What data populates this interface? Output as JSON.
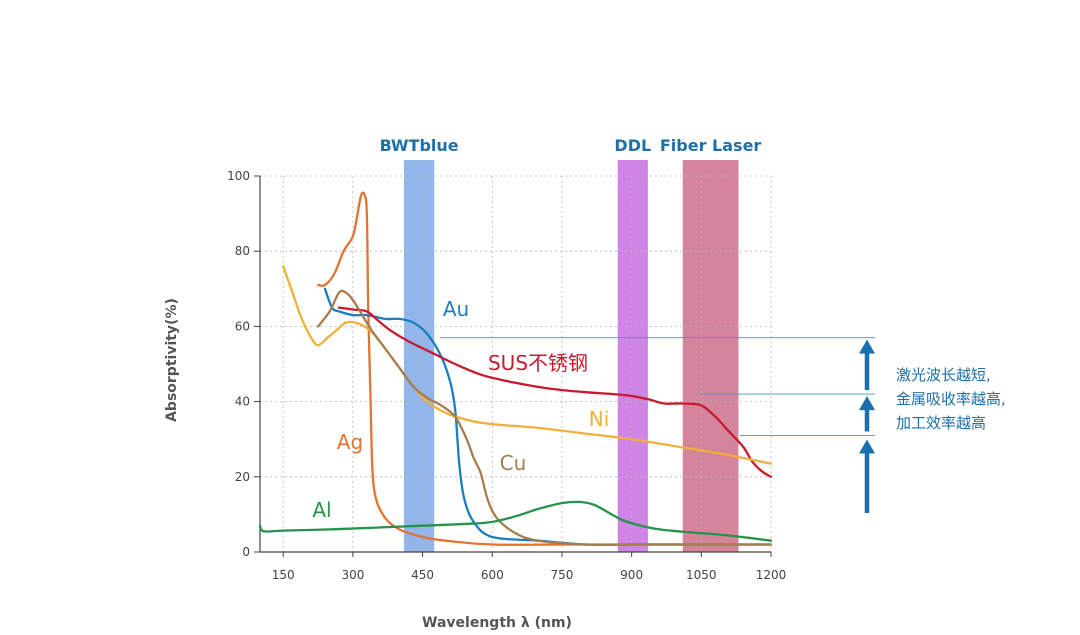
{
  "chart_data": {
    "type": "line",
    "xlabel": "Wavelength λ (nm)",
    "ylabel": "Absorptivity(%)",
    "xlim": [
      100,
      1200
    ],
    "ylim": [
      0,
      100
    ],
    "x_ticks": [
      150,
      300,
      450,
      600,
      750,
      900,
      1050,
      1200
    ],
    "y_ticks": [
      0,
      20,
      40,
      60,
      80,
      100
    ],
    "grid": true,
    "bands": [
      {
        "label": "BWTblue",
        "from": 410,
        "to": 475,
        "color": "#7fa8e6"
      },
      {
        "label": "DDL",
        "from": 870,
        "to": 935,
        "color": "#c86ee0"
      },
      {
        "label": "Fiber Laser",
        "from": 1010,
        "to": 1130,
        "color": "#cc6f8a"
      }
    ],
    "series": [
      {
        "name": "Ag",
        "color": "#e07533",
        "points": [
          [
            225,
            71
          ],
          [
            240,
            71
          ],
          [
            260,
            74
          ],
          [
            280,
            80
          ],
          [
            300,
            84
          ],
          [
            310,
            90
          ],
          [
            318,
            95
          ],
          [
            325,
            95
          ],
          [
            330,
            90
          ],
          [
            333,
            65
          ],
          [
            338,
            40
          ],
          [
            342,
            22
          ],
          [
            350,
            14
          ],
          [
            370,
            9
          ],
          [
            400,
            6
          ],
          [
            450,
            4
          ],
          [
            500,
            3
          ],
          [
            600,
            2
          ],
          [
            750,
            2
          ],
          [
            900,
            2
          ],
          [
            1200,
            2
          ]
        ]
      },
      {
        "name": "Au",
        "color": "#1a7fbf",
        "points": [
          [
            240,
            70
          ],
          [
            255,
            65
          ],
          [
            270,
            64
          ],
          [
            300,
            63
          ],
          [
            330,
            63
          ],
          [
            370,
            62
          ],
          [
            400,
            62
          ],
          [
            430,
            61
          ],
          [
            460,
            58
          ],
          [
            490,
            52
          ],
          [
            510,
            45
          ],
          [
            520,
            38
          ],
          [
            525,
            30
          ],
          [
            530,
            22
          ],
          [
            540,
            14
          ],
          [
            560,
            8
          ],
          [
            600,
            4
          ],
          [
            700,
            3
          ],
          [
            800,
            2
          ],
          [
            900,
            2
          ],
          [
            1000,
            2
          ],
          [
            1200,
            2
          ]
        ]
      },
      {
        "name": "SUS不锈钢",
        "color": "#c8192f",
        "points": [
          [
            270,
            65
          ],
          [
            300,
            64.5
          ],
          [
            330,
            64
          ],
          [
            350,
            62
          ],
          [
            380,
            59
          ],
          [
            420,
            56
          ],
          [
            470,
            53
          ],
          [
            520,
            50
          ],
          [
            580,
            47
          ],
          [
            650,
            45
          ],
          [
            720,
            43.5
          ],
          [
            800,
            42.5
          ],
          [
            860,
            42
          ],
          [
            900,
            41.5
          ],
          [
            940,
            40.5
          ],
          [
            970,
            39.5
          ],
          [
            1010,
            39.5
          ],
          [
            1050,
            39
          ],
          [
            1080,
            36
          ],
          [
            1110,
            32
          ],
          [
            1140,
            28
          ],
          [
            1160,
            24
          ],
          [
            1180,
            21.5
          ],
          [
            1200,
            20
          ]
        ]
      },
      {
        "name": "Ni",
        "color": "#f0b03c",
        "points": [
          [
            150,
            76
          ],
          [
            170,
            69
          ],
          [
            190,
            62
          ],
          [
            210,
            57
          ],
          [
            225,
            55
          ],
          [
            245,
            57
          ],
          [
            265,
            59
          ],
          [
            285,
            61
          ],
          [
            305,
            61
          ],
          [
            325,
            60
          ],
          [
            345,
            58
          ],
          [
            370,
            54
          ],
          [
            400,
            49
          ],
          [
            430,
            44
          ],
          [
            460,
            40
          ],
          [
            500,
            37
          ],
          [
            550,
            35
          ],
          [
            600,
            34
          ],
          [
            700,
            33
          ],
          [
            800,
            31.5
          ],
          [
            900,
            30
          ],
          [
            1000,
            28
          ],
          [
            1100,
            26
          ],
          [
            1200,
            23.5
          ]
        ]
      },
      {
        "name": "Cu",
        "color": "#a77c4f",
        "points": [
          [
            225,
            60
          ],
          [
            250,
            64
          ],
          [
            270,
            69
          ],
          [
            285,
            69
          ],
          [
            300,
            67
          ],
          [
            320,
            63
          ],
          [
            340,
            59
          ],
          [
            370,
            54
          ],
          [
            400,
            49
          ],
          [
            430,
            44
          ],
          [
            460,
            41
          ],
          [
            490,
            39
          ],
          [
            520,
            36
          ],
          [
            545,
            30
          ],
          [
            560,
            25
          ],
          [
            575,
            21
          ],
          [
            590,
            14
          ],
          [
            610,
            9
          ],
          [
            650,
            5
          ],
          [
            700,
            3
          ],
          [
            800,
            2
          ],
          [
            900,
            2
          ],
          [
            1200,
            2
          ]
        ]
      },
      {
        "name": "Al",
        "color": "#27924a",
        "points": [
          [
            100,
            7
          ],
          [
            108,
            5.5
          ],
          [
            150,
            5.7
          ],
          [
            250,
            6
          ],
          [
            350,
            6.5
          ],
          [
            450,
            7
          ],
          [
            550,
            7.5
          ],
          [
            600,
            8
          ],
          [
            650,
            9.5
          ],
          [
            700,
            11.5
          ],
          [
            750,
            13
          ],
          [
            790,
            13.3
          ],
          [
            820,
            12.5
          ],
          [
            850,
            10.5
          ],
          [
            880,
            8.5
          ],
          [
            920,
            7
          ],
          [
            960,
            6
          ],
          [
            1000,
            5.5
          ],
          [
            1050,
            5
          ],
          [
            1100,
            4.5
          ],
          [
            1150,
            3.8
          ],
          [
            1200,
            3
          ]
        ]
      }
    ],
    "annotation": {
      "lines": [
        "激光波长越短,",
        "金属吸收率越高,",
        "加工效率越高"
      ],
      "reference_levels": [
        57,
        42,
        31
      ]
    }
  }
}
